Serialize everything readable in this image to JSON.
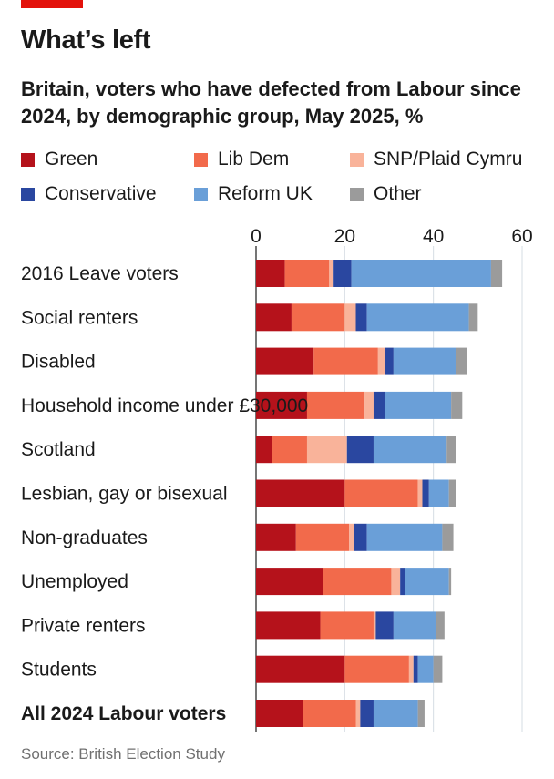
{
  "header": {
    "title": "What’s left",
    "subtitle": "Britain, voters who have defected from Labour since 2024, by demographic group, May 2025, %"
  },
  "legend": [
    {
      "label": "Green",
      "color": "#b5121b"
    },
    {
      "label": "Lib Dem",
      "color": "#f26a4b"
    },
    {
      "label": "SNP/Plaid Cymru",
      "color": "#f9b39a"
    },
    {
      "label": "Conservative",
      "color": "#2a47a0"
    },
    {
      "label": "Reform UK",
      "color": "#6a9fd8"
    },
    {
      "label": "Other",
      "color": "#9b9b9b"
    }
  ],
  "chart_data": {
    "type": "bar",
    "orientation": "horizontal",
    "stacked": true,
    "xlim": [
      0,
      60
    ],
    "xticks": [
      0,
      20,
      40,
      60
    ],
    "grid": true,
    "categories": [
      "2016 Leave voters",
      "Social renters",
      "Disabled",
      "Household income under £30,000",
      "Scotland",
      "Lesbian, gay or bisexual",
      "Non-graduates",
      "Unemployed",
      "Private renters",
      "Students",
      "All 2024 Labour voters"
    ],
    "bold_category": "All 2024 Labour voters",
    "series": [
      {
        "name": "Green",
        "color": "#b5121b",
        "values": [
          6.5,
          8,
          13,
          11.5,
          3.5,
          20,
          9,
          15,
          14.5,
          20,
          10.5
        ]
      },
      {
        "name": "Lib Dem",
        "color": "#f26a4b",
        "values": [
          10,
          12,
          14.5,
          13,
          8,
          16.5,
          12,
          15.5,
          12,
          14.5,
          12
        ]
      },
      {
        "name": "SNP/Plaid Cymru",
        "color": "#f9b39a",
        "values": [
          1,
          2.5,
          1.5,
          2,
          9,
          1,
          1,
          2,
          0.5,
          1,
          1
        ]
      },
      {
        "name": "Conservative",
        "color": "#2a47a0",
        "values": [
          4,
          2.5,
          2,
          2.5,
          6,
          1.5,
          3,
          1,
          4,
          1,
          3
        ]
      },
      {
        "name": "Reform UK",
        "color": "#6a9fd8",
        "values": [
          31.5,
          23,
          14,
          15,
          16.5,
          4.5,
          17,
          10,
          9.5,
          3.5,
          10
        ]
      },
      {
        "name": "Other",
        "color": "#9b9b9b",
        "values": [
          2.5,
          2,
          2.5,
          2.5,
          2,
          1.5,
          2.5,
          0.5,
          2,
          2,
          1.5
        ]
      }
    ]
  },
  "footer": {
    "source": "Source: British Election Study"
  }
}
